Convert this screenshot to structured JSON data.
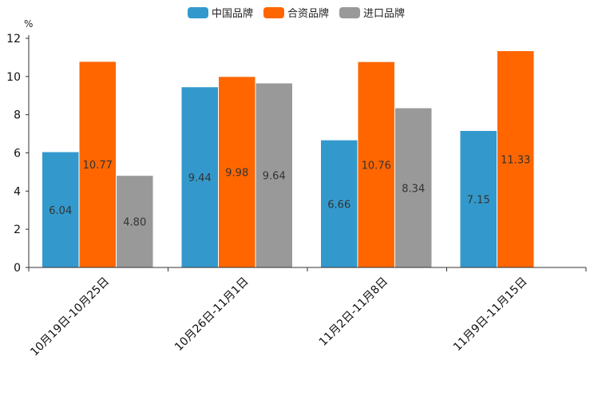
{
  "chart_data": {
    "type": "bar",
    "unit_label": "%",
    "categories": [
      "10月19日-10月25日",
      "10月26日-11月1日",
      "11月2日-11月8日",
      "11月9日-11月15日"
    ],
    "series": [
      {
        "name": "中国品牌",
        "color": "#3399cc",
        "values": [
          6.04,
          9.44,
          6.66,
          7.15
        ],
        "labels": [
          "6.04",
          "9.44",
          "6.66",
          "7.15"
        ]
      },
      {
        "name": "合资品牌",
        "color": "#ff6600",
        "values": [
          10.77,
          9.98,
          10.76,
          11.33
        ],
        "labels": [
          "10.77",
          "9.98",
          "10.76",
          "11.33"
        ]
      },
      {
        "name": "进口品牌",
        "color": "#999999",
        "values": [
          4.8,
          9.64,
          8.34,
          null
        ],
        "labels": [
          "4.80",
          "9.64",
          "8.34",
          null
        ]
      }
    ],
    "ylim": [
      0,
      12
    ],
    "yticks": [
      0,
      2,
      4,
      6,
      8,
      10,
      12
    ],
    "legend_position": "top-center",
    "grid": false
  }
}
